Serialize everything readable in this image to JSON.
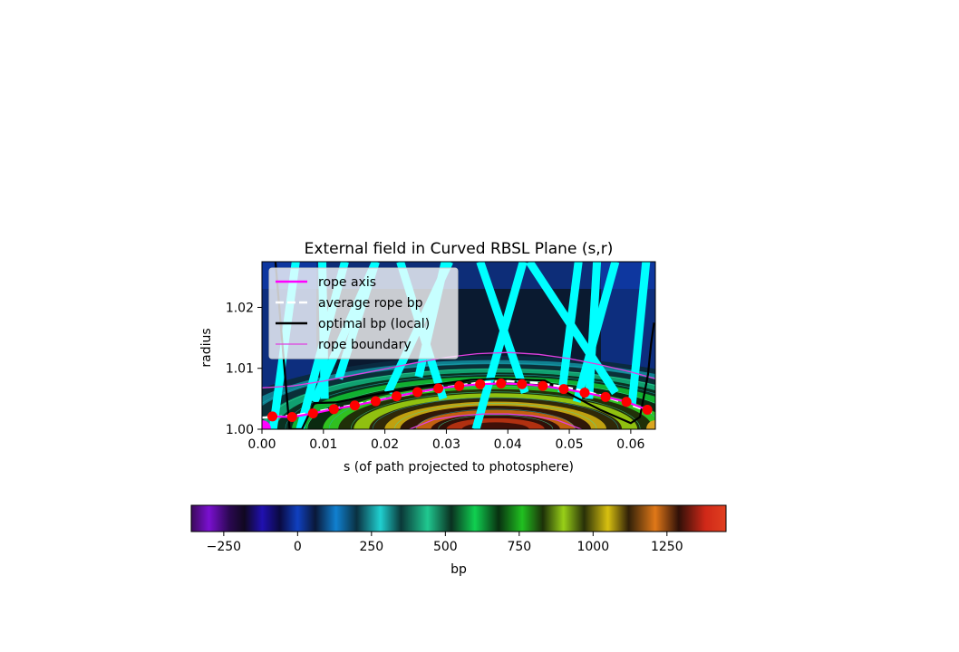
{
  "chart_data": {
    "type": "heatmap",
    "title": "External field in Curved RBSL Plane (s,r)",
    "xlabel": "s (of path projected to photosphere)",
    "ylabel": "radius",
    "xlim": [
      0.0,
      0.064
    ],
    "ylim": [
      1.0,
      1.0275
    ],
    "xticks": [
      "0.00",
      "0.01",
      "0.02",
      "0.03",
      "0.04",
      "0.05",
      "0.06"
    ],
    "yticks": [
      "1.00",
      "1.01",
      "1.02"
    ],
    "legend_position": "upper left",
    "legend": [
      "rope axis",
      "average rope bp",
      "optimal bp (local)",
      "rope boundary"
    ],
    "colors": {
      "rope_axis": "#ff00ff",
      "average_rope_bp": "#ffffff",
      "optimal_bp": "#000000",
      "rope_boundary": "#e040e0",
      "markers": "#ff0000",
      "field_lines": "#00ffff",
      "footpoint_left": "#ff00ff",
      "footpoint_right": "#daa520"
    },
    "rope_axis_points": {
      "s": [
        0.0017,
        0.0049,
        0.0083,
        0.0117,
        0.0151,
        0.0185,
        0.0219,
        0.0253,
        0.0287,
        0.0321,
        0.0355,
        0.0389,
        0.0423,
        0.0457,
        0.0491,
        0.0525,
        0.0559,
        0.0593,
        0.0627
      ],
      "r": [
        1.0021,
        1.002,
        1.0026,
        1.0033,
        1.0039,
        1.0046,
        1.0054,
        1.0061,
        1.0067,
        1.0071,
        1.0074,
        1.0075,
        1.0074,
        1.0071,
        1.0066,
        1.006,
        1.0053,
        1.0045,
        1.0032
      ]
    },
    "average_rope_bp": {
      "s": [
        0.0,
        0.005,
        0.01,
        0.015,
        0.02,
        0.025,
        0.03,
        0.035,
        0.04,
        0.045,
        0.05,
        0.055,
        0.06,
        0.064
      ],
      "r": [
        1.0019,
        1.0022,
        1.0031,
        1.004,
        1.005,
        1.006,
        1.0069,
        1.0076,
        1.0079,
        1.0076,
        1.0068,
        1.0056,
        1.004,
        1.0025
      ]
    },
    "optimal_bp": {
      "s": [
        0.0022,
        0.0045,
        0.0065,
        0.0085,
        0.012,
        0.02,
        0.028,
        0.034,
        0.038,
        0.046,
        0.05,
        0.055,
        0.06,
        0.0615,
        0.0628,
        0.0633,
        0.0638
      ],
      "r": [
        1.0275,
        1.0,
        1.0,
        1.0043,
        1.0044,
        1.006,
        1.0073,
        1.0081,
        1.0083,
        1.008,
        1.0058,
        1.0032,
        1.001,
        1.002,
        1.009,
        1.014,
        1.0175
      ]
    },
    "rope_boundary_upper": {
      "s": [
        0.0,
        0.005,
        0.01,
        0.015,
        0.02,
        0.025,
        0.03,
        0.035,
        0.04,
        0.045,
        0.05,
        0.055,
        0.06,
        0.064
      ],
      "r": [
        1.0068,
        1.0071,
        1.0079,
        1.0089,
        1.0099,
        1.0109,
        1.0118,
        1.0124,
        1.0126,
        1.0123,
        1.0116,
        1.0106,
        1.0094,
        1.0083
      ]
    },
    "rope_boundary_lower": {
      "s": [
        0.024,
        0.028,
        0.032,
        0.036,
        0.04,
        0.044,
        0.048,
        0.052
      ],
      "r": [
        1.0,
        1.0016,
        1.0022,
        1.0025,
        1.0025,
        1.0022,
        1.0015,
        1.0
      ]
    },
    "field_lines": [
      {
        "s": [
          0.0055,
          0.0018
        ],
        "r": [
          1.0275,
          1.0
        ]
      },
      {
        "s": [
          0.0135,
          0.0062
        ],
        "r": [
          1.0275,
          1.0
        ]
      },
      {
        "s": [
          0.0185,
          0.0085
        ],
        "r": [
          1.0275,
          1.0045
        ]
      },
      {
        "s": [
          0.0225,
          0.0295
        ],
        "r": [
          1.0275,
          1.005
        ]
      },
      {
        "s": [
          0.0305,
          0.0205
        ],
        "r": [
          1.0275,
          1.006
        ]
      },
      {
        "s": [
          0.0355,
          0.0428
        ],
        "r": [
          1.0275,
          1.006
        ]
      },
      {
        "s": [
          0.0425,
          0.0348
        ],
        "r": [
          1.0275,
          1.0
        ]
      },
      {
        "s": [
          0.0435,
          0.0575
        ],
        "r": [
          1.0275,
          1.006
        ]
      },
      {
        "s": [
          0.0625,
          0.0602
        ],
        "r": [
          1.0275,
          1.004
        ]
      },
      {
        "s": [
          0.0575,
          0.0512
        ],
        "r": [
          1.0275,
          1.0045
        ]
      },
      {
        "s": [
          0.0515,
          0.0488
        ],
        "r": [
          1.0275,
          1.006
        ]
      },
      {
        "s": [
          0.0545,
          0.0532
        ],
        "r": [
          1.0275,
          1.005
        ]
      },
      {
        "s": [
          0.0185,
          0.0125
        ],
        "r": [
          1.0275,
          1.0083
        ]
      },
      {
        "s": [
          0.0298,
          0.0255
        ],
        "r": [
          1.0275,
          1.0086
        ]
      },
      {
        "s": [
          0.0098,
          0.0102
        ],
        "r": [
          1.0275,
          1.005
        ]
      }
    ],
    "footpoints": [
      {
        "s": 0.0,
        "r": 1.0,
        "color": "#ff00ff"
      },
      {
        "s": 0.064,
        "r": 1.0,
        "color": "#daa520"
      }
    ],
    "colorbar": {
      "label": "bp",
      "min": -360,
      "max": 1450,
      "ticks": [
        "−250",
        "0",
        "250",
        "500",
        "750",
        "1000",
        "1250"
      ],
      "tick_values": [
        -250,
        0,
        250,
        500,
        750,
        1000,
        1250
      ],
      "colormap_stops": [
        {
          "v": -360,
          "c": "#3a0a5a"
        },
        {
          "v": -300,
          "c": "#7a10d0"
        },
        {
          "v": -230,
          "c": "#2a0850"
        },
        {
          "v": -180,
          "c": "#100820"
        },
        {
          "v": -120,
          "c": "#2010b0"
        },
        {
          "v": -60,
          "c": "#0a0a40"
        },
        {
          "v": 0,
          "c": "#1040c0"
        },
        {
          "v": 60,
          "c": "#0a1838"
        },
        {
          "v": 130,
          "c": "#1080d0"
        },
        {
          "v": 200,
          "c": "#0a3040"
        },
        {
          "v": 280,
          "c": "#20d0d0"
        },
        {
          "v": 350,
          "c": "#0a3838"
        },
        {
          "v": 440,
          "c": "#20c890"
        },
        {
          "v": 520,
          "c": "#0a3020"
        },
        {
          "v": 600,
          "c": "#10d050"
        },
        {
          "v": 680,
          "c": "#083010"
        },
        {
          "v": 760,
          "c": "#20c020"
        },
        {
          "v": 830,
          "c": "#1c3008"
        },
        {
          "v": 900,
          "c": "#98d018"
        },
        {
          "v": 970,
          "c": "#283008"
        },
        {
          "v": 1050,
          "c": "#d8c010"
        },
        {
          "v": 1120,
          "c": "#302008"
        },
        {
          "v": 1210,
          "c": "#e07818"
        },
        {
          "v": 1290,
          "c": "#301008"
        },
        {
          "v": 1380,
          "c": "#d02818"
        },
        {
          "v": 1450,
          "c": "#e04020"
        }
      ]
    }
  }
}
